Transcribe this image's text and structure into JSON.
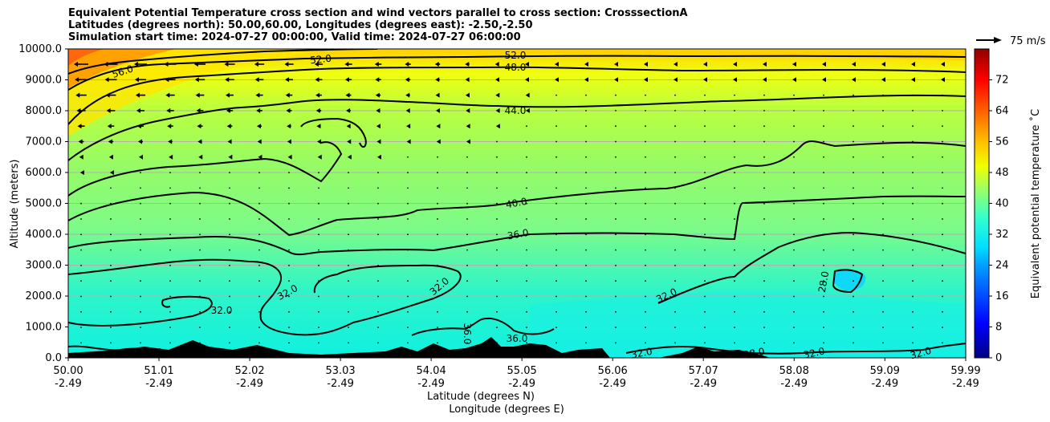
{
  "title_lines": [
    "Equivalent Potential Temperature cross section and wind vectors parallel to cross section: CrosssectionA",
    "Latitudes (degrees north): 50.00,60.00, Longitudes (degrees east): -2.50,-2.50",
    "Simulation start time: 2024-07-27 00:00:00, Valid time: 2024-07-27 06:00:00"
  ],
  "chart_data": {
    "type": "heatmap",
    "title": "Equivalent Potential Temperature cross section and wind vectors parallel to cross section: CrosssectionA",
    "ylabel": "Altitude (meters)",
    "xlabel_1": "Latitude (degrees N)",
    "xlabel_2": "Longitude (degrees E)",
    "y_ticks": [
      "0.0",
      "1000.0",
      "2000.0",
      "3000.0",
      "4000.0",
      "5000.0",
      "6000.0",
      "7000.0",
      "8000.0",
      "9000.0",
      "10000.0"
    ],
    "ylim": [
      0,
      10000
    ],
    "x_ticks_lat": [
      "50.00",
      "51.01",
      "52.02",
      "53.03",
      "54.04",
      "55.05",
      "56.06",
      "57.07",
      "58.08",
      "59.09",
      "59.99"
    ],
    "x_ticks_lon": [
      "-2.49",
      "-2.49",
      "-2.49",
      "-2.49",
      "-2.49",
      "-2.49",
      "-2.49",
      "-2.49",
      "-2.49",
      "-2.49",
      "-2.49"
    ],
    "xlim": [
      50.0,
      59.99
    ],
    "grid": "horizontal",
    "colorbar": {
      "label": "Equivalent potential temperature ˚C",
      "ticks": [
        "0",
        "8",
        "16",
        "24",
        "32",
        "40",
        "48",
        "56",
        "64",
        "72"
      ],
      "range": [
        0,
        80
      ]
    },
    "quiver_key": "75 m/s",
    "contour_labels": [
      "56.0",
      "52.0",
      "52.0",
      "48.0",
      "44.0",
      "40.0",
      "36.0",
      "32.0",
      "32.0",
      "32.0",
      "32.0",
      "32.0",
      "32.0",
      "32.0",
      "36.0",
      "36.0",
      "28.0",
      "28.0"
    ],
    "colors": {
      "terrain": "#000000",
      "contour": "#000000"
    }
  }
}
